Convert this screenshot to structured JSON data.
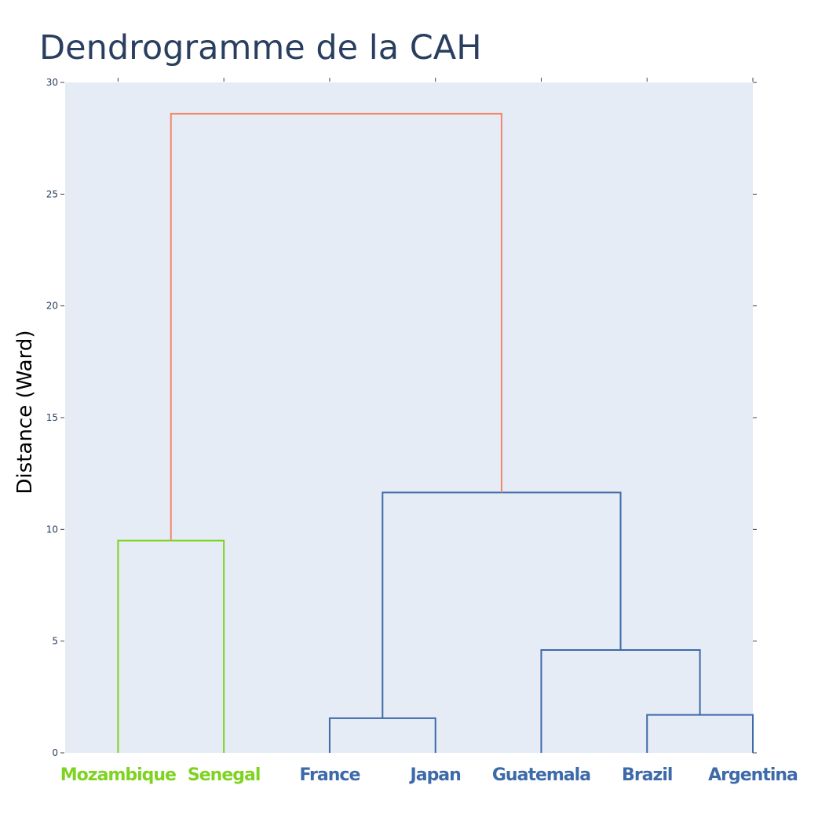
{
  "chart_data": {
    "type": "dendrogram",
    "title": "Dendrogramme de la CAH",
    "xlabel": "",
    "ylabel": "Distance (Ward)",
    "ylim": [
      0,
      30
    ],
    "yticks": [
      0,
      5,
      10,
      15,
      20,
      25,
      30
    ],
    "grid": false,
    "background": "#e5ecf6",
    "leaves": [
      {
        "label": "Mozambique",
        "color": "#7ed321"
      },
      {
        "label": "Senegal",
        "color": "#7ed321"
      },
      {
        "label": "France",
        "color": "#3d6aa8"
      },
      {
        "label": "Japan",
        "color": "#3d6aa8"
      },
      {
        "label": "Guatemala",
        "color": "#3d6aa8"
      },
      {
        "label": "Brazil",
        "color": "#3d6aa8"
      },
      {
        "label": "Argentina",
        "color": "#3d6aa8"
      }
    ],
    "merges": [
      {
        "left": "Mozambique",
        "right": "Senegal",
        "height": 9.5,
        "color": "#7ed321"
      },
      {
        "left": "France",
        "right": "Japan",
        "height": 1.55,
        "color": "#3d6aa8"
      },
      {
        "left": "Brazil",
        "right": "Argentina",
        "height": 1.7,
        "color": "#3d6aa8"
      },
      {
        "left": "Guatemala",
        "right": "Brazil+Argentina",
        "height": 4.6,
        "color": "#3d6aa8"
      },
      {
        "left": "France+Japan",
        "right": "Guatemala+Brazil+Argentina",
        "height": 11.65,
        "color": "#3d6aa8"
      },
      {
        "left": "Mozambique+Senegal",
        "right": "France+Japan+Guatemala+Brazil+Argentina",
        "height": 28.6,
        "color": "#f4876a"
      }
    ]
  }
}
